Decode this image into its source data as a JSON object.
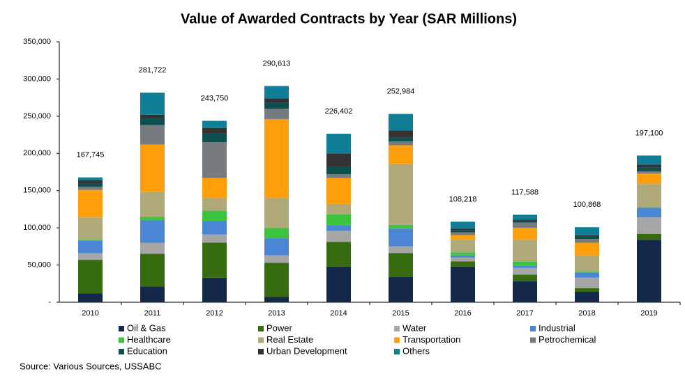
{
  "chart_data": {
    "type": "stacked_bar",
    "title": "Value of Awarded Contracts by Year (SAR Millions)",
    "categories": [
      "2010",
      "2011",
      "2012",
      "2013",
      "2014",
      "2015",
      "2016",
      "2017",
      "2018",
      "2019"
    ],
    "series": [
      {
        "name": "Oil & Gas",
        "color": "#14284b",
        "values": [
          12000,
          21000,
          33000,
          7000,
          48000,
          34000,
          48000,
          28000,
          14000,
          84000
        ]
      },
      {
        "name": "Power",
        "color": "#376b0f",
        "values": [
          45000,
          44000,
          47000,
          46000,
          33000,
          32000,
          7000,
          9000,
          5000,
          8000
        ]
      },
      {
        "name": "Water",
        "color": "#a6a6a6",
        "values": [
          9000,
          15000,
          11000,
          10000,
          15000,
          9000,
          5000,
          9000,
          14000,
          22000
        ]
      },
      {
        "name": "Industrial",
        "color": "#4a86d4",
        "values": [
          17000,
          30000,
          18000,
          23000,
          7000,
          24000,
          3000,
          3000,
          7000,
          13000
        ]
      },
      {
        "name": "Healthcare",
        "color": "#3cc43c",
        "values": [
          1000,
          5000,
          14000,
          14000,
          15000,
          5000,
          4000,
          6000,
          1000,
          1000
        ]
      },
      {
        "name": "Real Estate",
        "color": "#b0aa7a",
        "values": [
          30000,
          33000,
          17000,
          40000,
          14000,
          82000,
          17000,
          29000,
          22000,
          31000
        ]
      },
      {
        "name": "Transportation",
        "color": "#ff9e0b",
        "values": [
          37000,
          64000,
          27000,
          106000,
          35000,
          25000,
          6000,
          16000,
          17000,
          14000
        ]
      },
      {
        "name": "Petrochemical",
        "color": "#767b80",
        "values": [
          4000,
          26000,
          48000,
          14000,
          5000,
          5000,
          4000,
          7000,
          5000,
          3000
        ]
      },
      {
        "name": "Education",
        "color": "#0d4f4f",
        "values": [
          5000,
          10000,
          12000,
          8000,
          10000,
          5000,
          3000,
          2000,
          3000,
          5000
        ]
      },
      {
        "name": "Urban Development",
        "color": "#333333",
        "values": [
          4000,
          4000,
          7000,
          6000,
          18000,
          10000,
          2000,
          2000,
          2000,
          4000
        ]
      },
      {
        "name": "Others",
        "color": "#0e7f97",
        "values": [
          3745,
          29722,
          9750,
          16613,
          26402,
          21984,
          9218,
          6588,
          10868,
          12100
        ]
      }
    ],
    "totals": [
      167745,
      281722,
      243750,
      290613,
      226402,
      252984,
      108218,
      117588,
      100868,
      197100
    ],
    "total_labels": [
      "167,745",
      "281,722",
      "243,750",
      "290,613",
      "226,402",
      "252,984",
      "108,218",
      "117,588",
      "100,868",
      "197,100"
    ],
    "ylim": [
      0,
      350000
    ],
    "yticks": [
      {
        "value": 0,
        "label": "-"
      },
      {
        "value": 50000,
        "label": "50,000"
      },
      {
        "value": 100000,
        "label": "100,000"
      },
      {
        "value": 150000,
        "label": "150,000"
      },
      {
        "value": 200000,
        "label": "200,000"
      },
      {
        "value": 250000,
        "label": "250,000"
      },
      {
        "value": 300000,
        "label": "300,000"
      },
      {
        "value": 350000,
        "label": "350,000"
      }
    ],
    "source": "Source: Various Sources, USSABC"
  }
}
